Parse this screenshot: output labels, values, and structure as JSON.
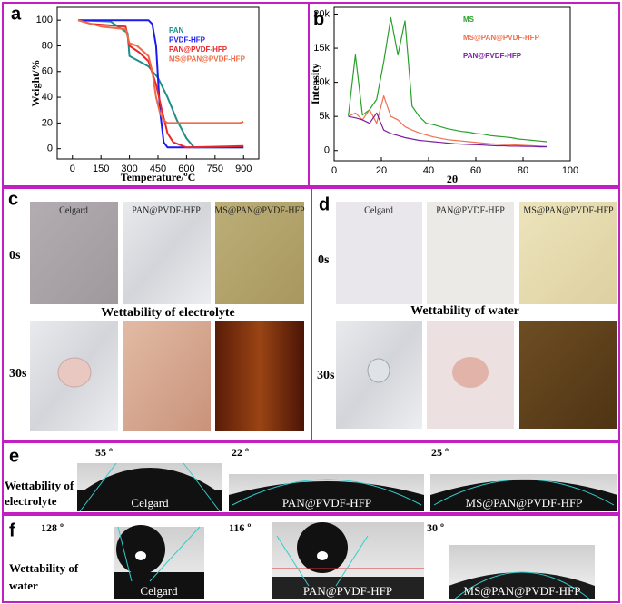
{
  "chart_data": [
    {
      "type": "line",
      "panel_label": "a",
      "xlabel": "Temperature/ºC",
      "ylabel": "Weight/%",
      "xlim": [
        -80,
        980
      ],
      "ylim": [
        -8,
        110
      ],
      "xticks": [
        0,
        150,
        300,
        450,
        600,
        750,
        900
      ],
      "yticks": [
        0,
        20,
        40,
        60,
        80,
        100
      ],
      "series": [
        {
          "name": "PAN",
          "color": "#1f8f8a",
          "x": [
            30,
            200,
            290,
            300,
            350,
            400,
            450,
            500,
            550,
            600,
            640,
            700,
            900
          ],
          "values": [
            100,
            99,
            90,
            72,
            68,
            64,
            55,
            40,
            22,
            8,
            1,
            1,
            1
          ]
        },
        {
          "name": "PVDF-HFP",
          "color": "#1a1aee",
          "x": [
            30,
            400,
            420,
            440,
            460,
            480,
            500,
            600,
            900
          ],
          "values": [
            100,
            100,
            97,
            80,
            30,
            5,
            1,
            1,
            1
          ]
        },
        {
          "name": "PAN@PVDF-HFP",
          "color": "#e8282a",
          "x": [
            30,
            100,
            280,
            300,
            350,
            400,
            440,
            470,
            500,
            530,
            600,
            900
          ],
          "values": [
            100,
            97,
            95,
            80,
            75,
            68,
            50,
            30,
            12,
            5,
            1,
            2
          ]
        },
        {
          "name": "MS@PAN@PVDF-HFP",
          "color": "#ef6a45",
          "x": [
            30,
            150,
            280,
            300,
            340,
            400,
            420,
            440,
            460,
            480,
            500,
            880,
            900
          ],
          "values": [
            100,
            95,
            93,
            82,
            80,
            72,
            60,
            40,
            28,
            22,
            20,
            20,
            21
          ]
        }
      ]
    },
    {
      "type": "line",
      "panel_label": "b",
      "xlabel": "2θ",
      "ylabel": "Intensity",
      "xlim": [
        0,
        100
      ],
      "ylim": [
        -1500,
        21000
      ],
      "xticks": [
        0,
        20,
        40,
        60,
        80,
        100
      ],
      "yticks": [
        0,
        {
          "value": 5000,
          "label": "5k"
        },
        {
          "value": 10000,
          "label": "10k"
        },
        {
          "value": 15000,
          "label": "15k"
        },
        {
          "value": 20000,
          "label": "20k"
        }
      ],
      "x": [
        6,
        9,
        12,
        15,
        18,
        21,
        24,
        27,
        30,
        33,
        36,
        39,
        42,
        45,
        48,
        51,
        54,
        57,
        60,
        63,
        66,
        69,
        72,
        75,
        78,
        81,
        84,
        87,
        90
      ],
      "series": [
        {
          "name": "MS",
          "color": "#2aa02a",
          "values": [
            5000,
            14000,
            5200,
            6000,
            7500,
            13000,
            19500,
            14000,
            19000,
            6500,
            5000,
            4000,
            3800,
            3500,
            3200,
            3000,
            2800,
            2700,
            2500,
            2400,
            2200,
            2100,
            2000,
            1900,
            1700,
            1600,
            1500,
            1400,
            1300
          ]
        },
        {
          "name": "MS@PAN@PVDF-HFP",
          "color": "#f07050",
          "values": [
            5000,
            5500,
            4500,
            6000,
            4000,
            8000,
            5000,
            4500,
            3500,
            3000,
            2600,
            2300,
            2000,
            1800,
            1600,
            1500,
            1400,
            1300,
            1200,
            1100,
            1000,
            950,
            900,
            850,
            800,
            750,
            700,
            650,
            600
          ]
        },
        {
          "name": "PAN@PVDF-HFP",
          "color": "#7a1fa0",
          "values": [
            5000,
            4800,
            4500,
            4000,
            5500,
            3000,
            2500,
            2200,
            1900,
            1700,
            1500,
            1400,
            1300,
            1200,
            1100,
            1000,
            950,
            900,
            850,
            800,
            750,
            700,
            700,
            650,
            650,
            600,
            600,
            550,
            550
          ]
        }
      ]
    }
  ],
  "panels": {
    "c": {
      "label": "c",
      "columns": [
        "Celgard",
        "PAN@PVDF-HFP",
        "MS@PAN@PVDF-HFP"
      ],
      "rows": [
        "0s",
        "30s"
      ],
      "caption": "Wettability of electrolyte"
    },
    "d": {
      "label": "d",
      "columns": [
        "Celgard",
        "PAN@PVDF-HFP",
        "MS@PAN@PVDF-HFP"
      ],
      "rows": [
        "0s",
        "30s"
      ],
      "caption": "Wettability of water"
    },
    "e": {
      "label": "e",
      "angles": [
        "55 º",
        "22 º",
        "25 º"
      ],
      "side": [
        "Wettability of",
        "electrolyte"
      ],
      "samples": [
        "Celgard",
        "PAN@PVDF-HFP",
        "MS@PAN@PVDF-HFP"
      ]
    },
    "f": {
      "label": "f",
      "angles": [
        "128 º",
        "116 º",
        "30 º"
      ],
      "side": [
        "Wettability of",
        "water"
      ],
      "samples": [
        "Celgard",
        "PAN@PVDF-HFP",
        "MS@PAN@PVDF-HFP"
      ]
    }
  }
}
